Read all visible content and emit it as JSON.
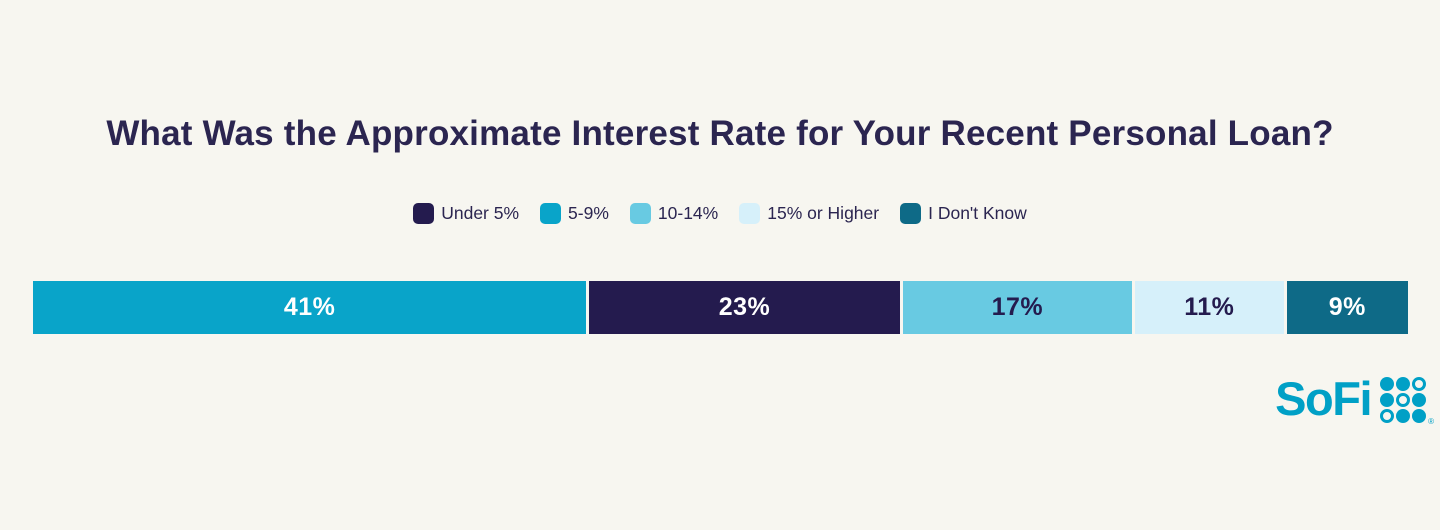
{
  "page": {
    "background_color": "#f7f6f0"
  },
  "chart_data": {
    "type": "bar",
    "subtype": "horizontal-stacked-percentage",
    "title": "What Was the Approximate Interest Rate for Your Recent Personal Loan?",
    "title_color": "#2b2550",
    "legend_position": "top-center",
    "grid": false,
    "axes_visible": false,
    "categories": [
      "Under 5%",
      "5-9%",
      "10-14%",
      "15% or Higher",
      "I Don't Know"
    ],
    "values_by_category": [
      23,
      41,
      17,
      11,
      9
    ],
    "legend": [
      {
        "label": "Under 5%",
        "color": "#241b4e"
      },
      {
        "label": "5-9%",
        "color": "#09a4c9"
      },
      {
        "label": "10-14%",
        "color": "#68cae2"
      },
      {
        "label": "15% or Higher",
        "color": "#d6f0fa"
      },
      {
        "label": "I Don't Know",
        "color": "#0e6a87"
      }
    ],
    "segments": [
      {
        "category": "5-9%",
        "value": 41,
        "label": "41%",
        "color": "#09a4c9",
        "label_color": "#ffffff"
      },
      {
        "category": "Under 5%",
        "value": 23,
        "label": "23%",
        "color": "#241b4e",
        "label_color": "#ffffff"
      },
      {
        "category": "10-14%",
        "value": 17,
        "label": "17%",
        "color": "#68cae2",
        "label_color": "#241b4e"
      },
      {
        "category": "15% or Higher",
        "value": 11,
        "label": "11%",
        "color": "#d6f0fa",
        "label_color": "#241b4e"
      },
      {
        "category": "I Don't Know",
        "value": 9,
        "label": "9%",
        "color": "#0e6a87",
        "label_color": "#ffffff"
      }
    ]
  },
  "branding": {
    "logo_text": "SoFi",
    "logo_color": "#00a0c6",
    "trademark": "®",
    "logo_dots_pattern": [
      [
        "filled",
        "filled",
        "outlined"
      ],
      [
        "filled",
        "outlined",
        "filled"
      ],
      [
        "outlined",
        "filled",
        "filled"
      ]
    ]
  }
}
